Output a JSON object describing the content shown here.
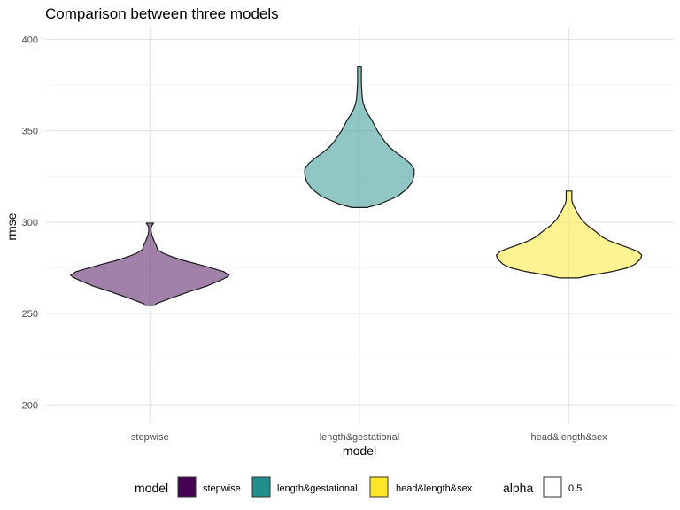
{
  "chart_data": {
    "type": "violin",
    "title": "Comparison between three models",
    "xlabel": "model",
    "ylabel": "rmse",
    "categories": [
      "stepwise",
      "length&gestational",
      "head&length&sex"
    ],
    "ylim": [
      190,
      407
    ],
    "yticks": [
      200,
      250,
      300,
      350,
      400
    ],
    "alpha": 0.5,
    "grid": true,
    "legend_position": "bottom",
    "series": [
      {
        "name": "stepwise",
        "color": "#440154",
        "min": 254.5,
        "max": 299.5,
        "density": [
          [
            254.5,
            0.05
          ],
          [
            255.5,
            0.07
          ],
          [
            258,
            0.2
          ],
          [
            262,
            0.42
          ],
          [
            265,
            0.6
          ],
          [
            268,
            0.74
          ],
          [
            270,
            0.82
          ],
          [
            271,
            0.84
          ],
          [
            273,
            0.78
          ],
          [
            276,
            0.58
          ],
          [
            279,
            0.36
          ],
          [
            281,
            0.24
          ],
          [
            283,
            0.14
          ],
          [
            285,
            0.08
          ],
          [
            287,
            0.07
          ],
          [
            289,
            0.05
          ],
          [
            291,
            0.035
          ],
          [
            293,
            0.02
          ],
          [
            295,
            0.013
          ],
          [
            297,
            0.012
          ],
          [
            298.5,
            0.025
          ],
          [
            299.5,
            0.04
          ]
        ]
      },
      {
        "name": "length&gestational",
        "color": "#21908C",
        "min": 308,
        "max": 385,
        "density": [
          [
            308,
            0.08
          ],
          [
            310,
            0.22
          ],
          [
            314,
            0.4
          ],
          [
            318,
            0.5
          ],
          [
            322,
            0.56
          ],
          [
            326,
            0.58
          ],
          [
            329,
            0.58
          ],
          [
            332,
            0.54
          ],
          [
            335,
            0.47
          ],
          [
            338,
            0.39
          ],
          [
            341,
            0.32
          ],
          [
            344,
            0.27
          ],
          [
            347,
            0.23
          ],
          [
            350,
            0.19
          ],
          [
            353,
            0.16
          ],
          [
            356,
            0.13
          ],
          [
            359,
            0.09
          ],
          [
            362,
            0.06
          ],
          [
            365,
            0.04
          ],
          [
            368,
            0.03
          ],
          [
            372,
            0.025
          ],
          [
            376,
            0.02
          ],
          [
            380,
            0.02
          ],
          [
            383,
            0.02
          ],
          [
            385,
            0.02
          ]
        ]
      },
      {
        "name": "head&length&sex",
        "color": "#FDE725",
        "min": 269.5,
        "max": 317,
        "density": [
          [
            269.5,
            0.1
          ],
          [
            271,
            0.24
          ],
          [
            273,
            0.46
          ],
          [
            275,
            0.62
          ],
          [
            277,
            0.7
          ],
          [
            280,
            0.76
          ],
          [
            282,
            0.77
          ],
          [
            284,
            0.73
          ],
          [
            286,
            0.63
          ],
          [
            288,
            0.52
          ],
          [
            290,
            0.42
          ],
          [
            292,
            0.35
          ],
          [
            295,
            0.28
          ],
          [
            298,
            0.2
          ],
          [
            301,
            0.14
          ],
          [
            304,
            0.1
          ],
          [
            306,
            0.08
          ],
          [
            308,
            0.06
          ],
          [
            310,
            0.04
          ],
          [
            312,
            0.03
          ],
          [
            315,
            0.03
          ],
          [
            317,
            0.03
          ]
        ]
      }
    ]
  },
  "legend": {
    "title": "model",
    "items": [
      "stepwise",
      "length&gestational",
      "head&length&sex"
    ],
    "alpha_title": "alpha",
    "alpha_label": "0.5"
  }
}
